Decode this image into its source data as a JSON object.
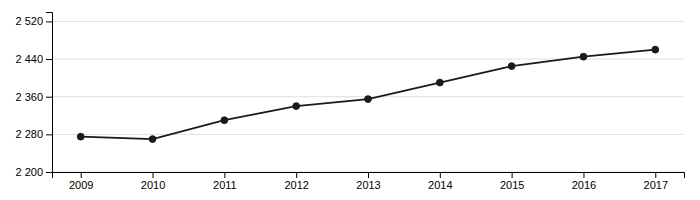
{
  "chart_data": {
    "type": "line",
    "x": [
      2009,
      2010,
      2011,
      2012,
      2013,
      2014,
      2015,
      2016,
      2017
    ],
    "values": [
      2275,
      2270,
      2310,
      2340,
      2355,
      2390,
      2425,
      2445,
      2460
    ],
    "color": "#1a1a1a",
    "marker": "circle",
    "xlim": [
      2008.6,
      2017.4
    ],
    "xticks": [
      2009,
      2010,
      2011,
      2012,
      2013,
      2014,
      2015,
      2016,
      2017
    ],
    "ylim": [
      2200,
      2540
    ],
    "yticks": [
      {
        "value": 2200,
        "label": "2 200"
      },
      {
        "value": 2280,
        "label": "2 280"
      },
      {
        "value": 2360,
        "label": "2 360"
      },
      {
        "value": 2440,
        "label": "2 440"
      },
      {
        "value": 2520,
        "label": "2 520"
      }
    ],
    "grid": true
  }
}
